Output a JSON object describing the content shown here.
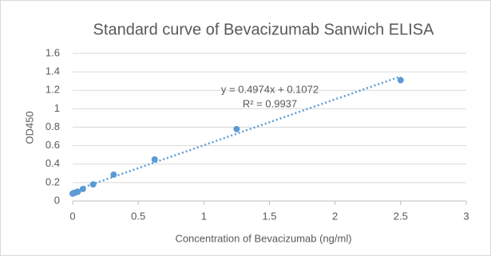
{
  "chart_data": {
    "type": "scatter",
    "title": "Standard curve of Bevacizumab Sanwich ELISA",
    "x_label": "Concentration of Bevacizumab (ng/ml)",
    "y_label": "OD450",
    "series": [
      {
        "name": "OD450",
        "color": "#5b9bd5",
        "x": [
          0,
          0.0195,
          0.039,
          0.078,
          0.156,
          0.3125,
          0.625,
          1.25,
          2.5
        ],
        "values": [
          0.08,
          0.09,
          0.1,
          0.13,
          0.18,
          0.285,
          0.45,
          0.78,
          1.31
        ]
      }
    ],
    "trendline": {
      "slope": 0.4974,
      "intercept": 0.1072,
      "color": "#5b9bd5",
      "equation": "y = 0.4974x + 0.1072",
      "r_squared": "R² = 0.9937"
    },
    "xlim": [
      0,
      3
    ],
    "xticks": [
      0,
      0.5,
      1,
      1.5,
      2,
      2.5,
      3
    ],
    "ylim": [
      0,
      1.6
    ],
    "yticks": [
      0,
      0.2,
      0.4,
      0.6,
      0.8,
      1,
      1.2,
      1.4,
      1.6
    ],
    "grid": true
  }
}
